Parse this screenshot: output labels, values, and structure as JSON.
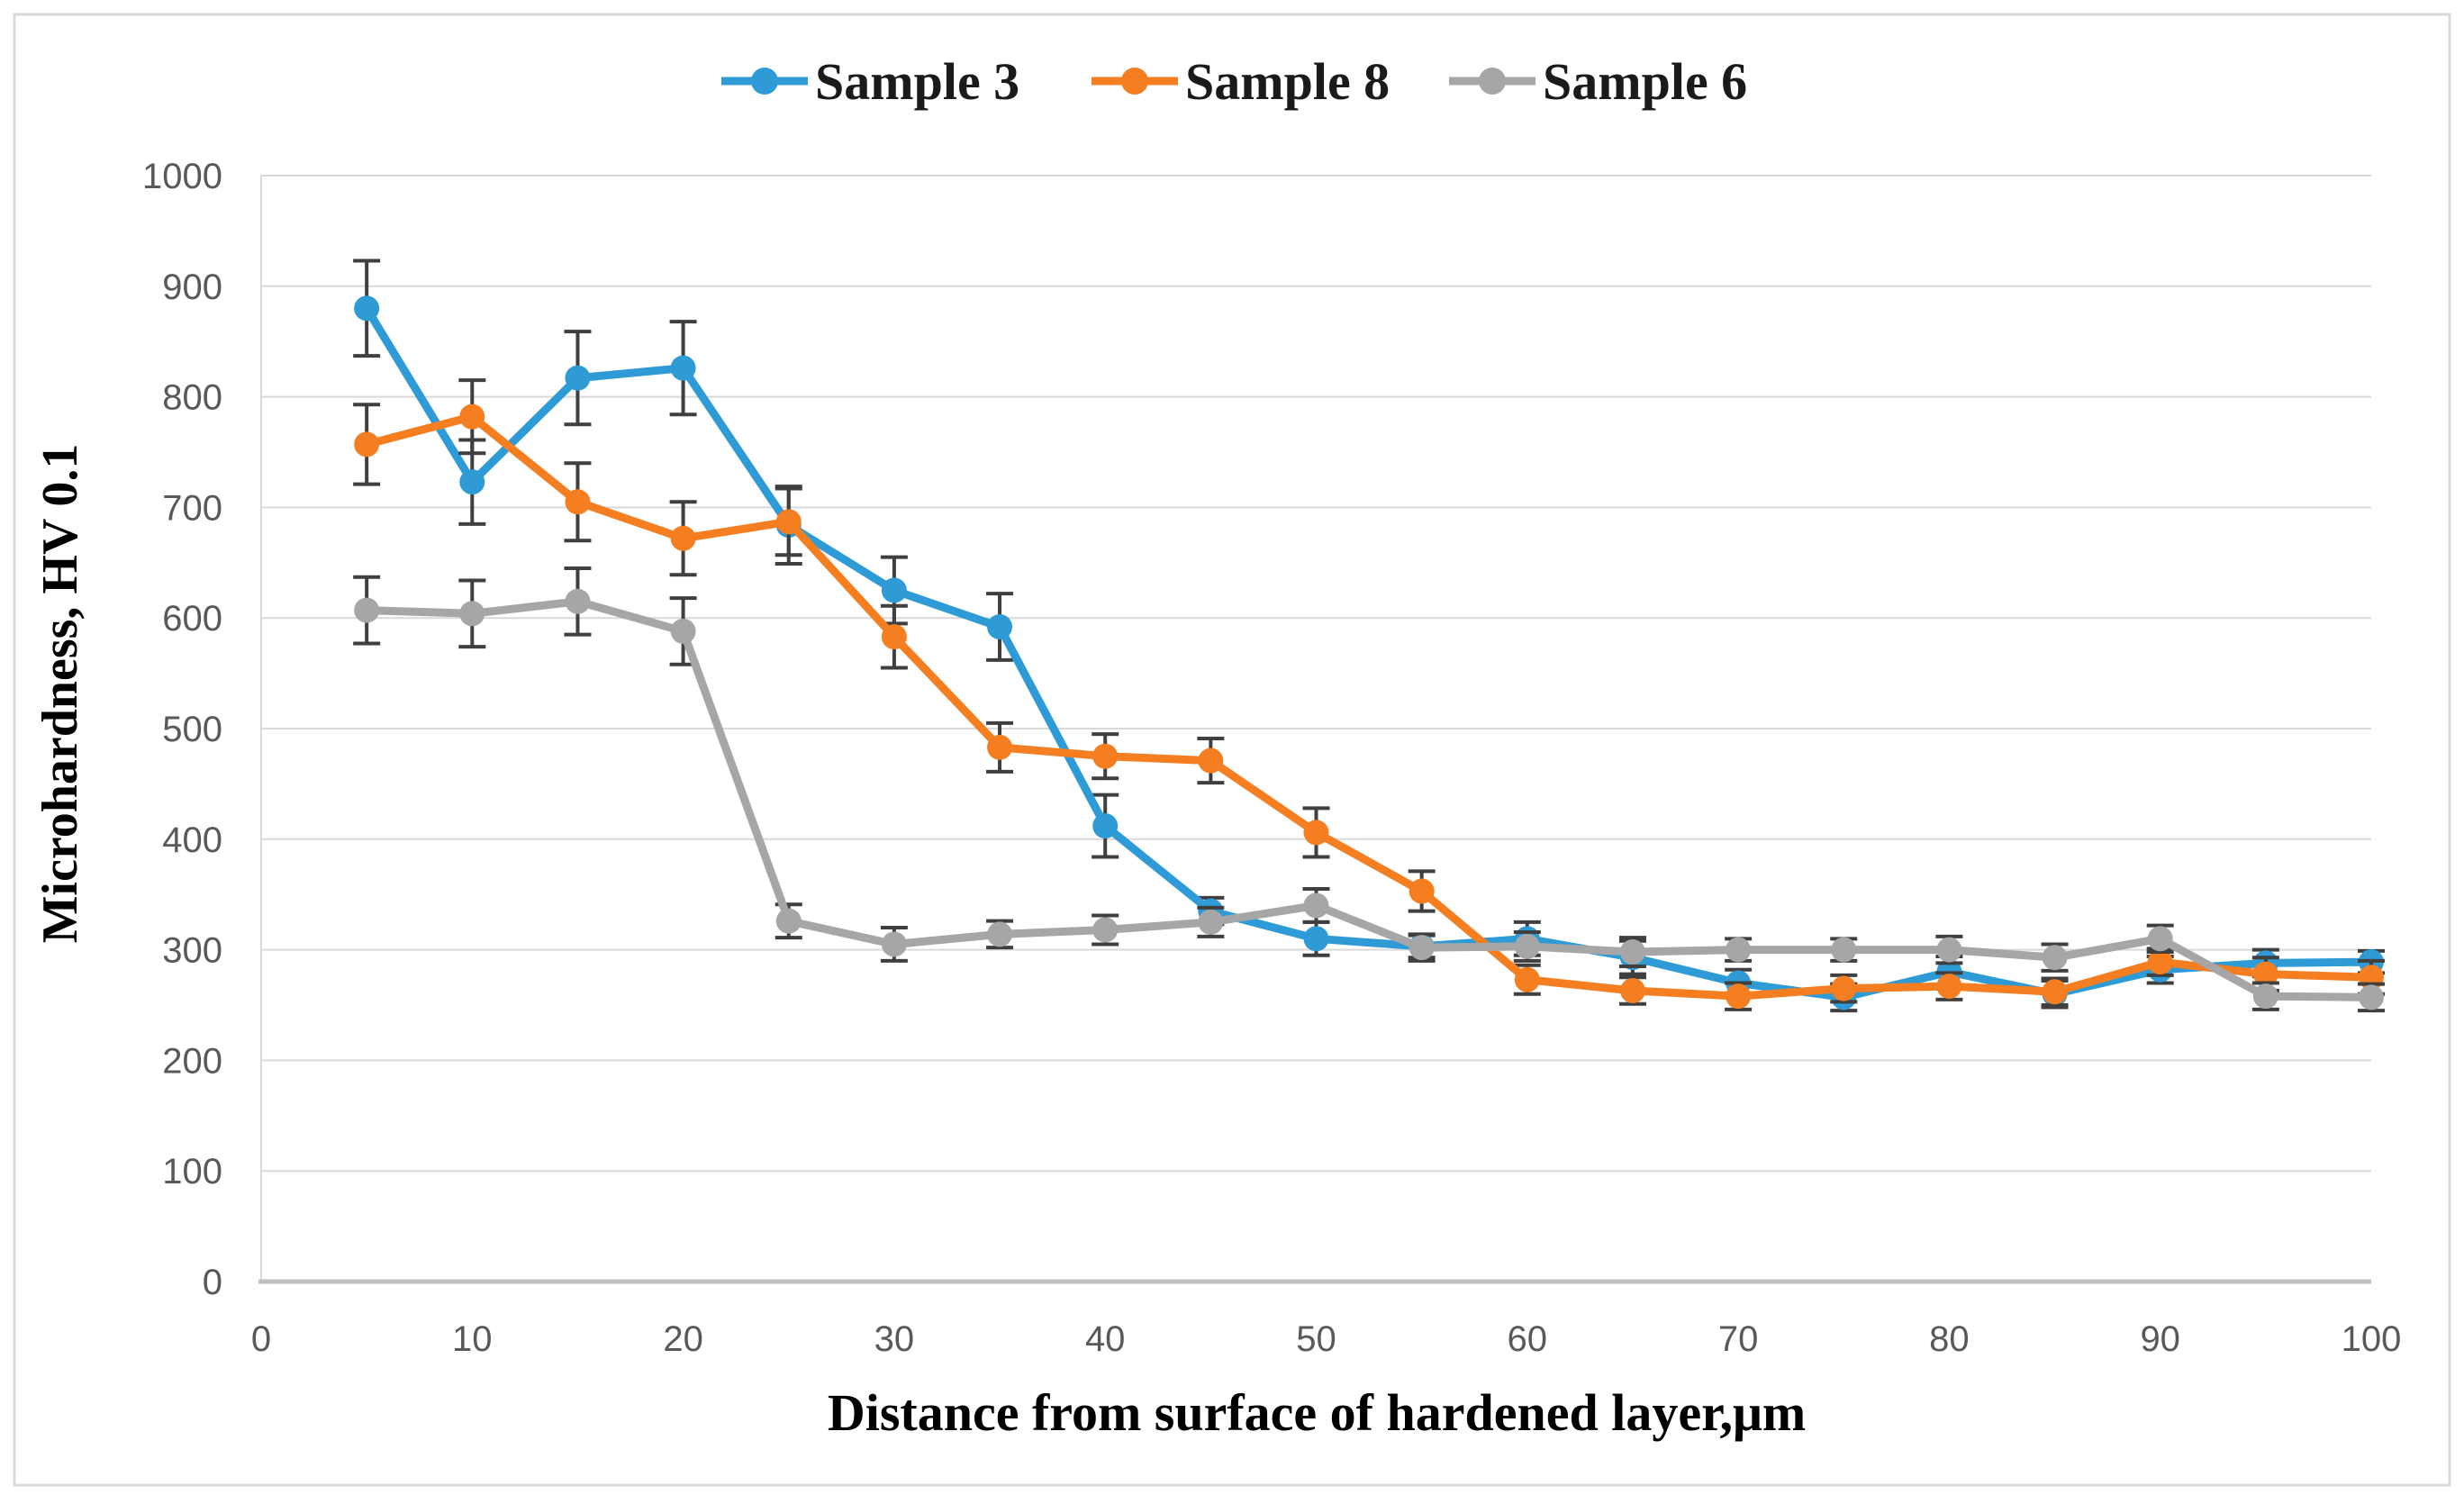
{
  "figure": {
    "background": "#ffffff",
    "frame_color": "#d9d9d9"
  },
  "chart_data": {
    "type": "line",
    "title": "",
    "xlabel": "Distance from surface of hardened layer,μm",
    "ylabel": "Microhardness, HV 0.1",
    "xlim": [
      0,
      100
    ],
    "ylim": [
      0,
      1000
    ],
    "x_ticks": [
      0,
      10,
      20,
      30,
      40,
      50,
      60,
      70,
      80,
      90,
      100
    ],
    "y_ticks": [
      0,
      100,
      200,
      300,
      400,
      500,
      600,
      700,
      800,
      900,
      1000
    ],
    "grid": true,
    "legend_position": "top-center",
    "gridline_color": "#d9d9d9",
    "axis_line_color": "#bfbfbf",
    "error_bar_color": "#3f3f3f",
    "tick_label_color": "#595959",
    "x": [
      5,
      10,
      15,
      20,
      25,
      30,
      35,
      40,
      45,
      50,
      55,
      60,
      65,
      70,
      75,
      80,
      85,
      90,
      95,
      100
    ],
    "series": [
      {
        "name": "Sample 3",
        "color": "#2E9BD6",
        "values": [
          880,
          723,
          817,
          826,
          684,
          625,
          592,
          412,
          335,
          310,
          303,
          310,
          293,
          270,
          257,
          280,
          260,
          282,
          288,
          289
        ],
        "errors": [
          43,
          38,
          42,
          42,
          35,
          30,
          30,
          28,
          12,
          15,
          10,
          15,
          15,
          12,
          12,
          14,
          12,
          12,
          12,
          10
        ]
      },
      {
        "name": "Sample 8",
        "color": "#F57E21",
        "values": [
          757,
          782,
          705,
          672,
          687,
          583,
          483,
          475,
          471,
          406,
          353,
          273,
          263,
          258,
          265,
          267,
          262,
          289,
          278,
          275
        ],
        "errors": [
          36,
          33,
          35,
          33,
          30,
          28,
          22,
          20,
          20,
          22,
          18,
          13,
          12,
          12,
          12,
          12,
          12,
          12,
          15,
          15
        ]
      },
      {
        "name": "Sample 6",
        "color": "#A6A6A6",
        "values": [
          607,
          604,
          615,
          588,
          326,
          305,
          314,
          318,
          325,
          340,
          302,
          303,
          298,
          300,
          300,
          300,
          293,
          310,
          258,
          257
        ],
        "errors": [
          30,
          30,
          30,
          30,
          15,
          15,
          12,
          13,
          13,
          15,
          12,
          13,
          13,
          10,
          10,
          12,
          12,
          12,
          12,
          12
        ]
      }
    ]
  }
}
